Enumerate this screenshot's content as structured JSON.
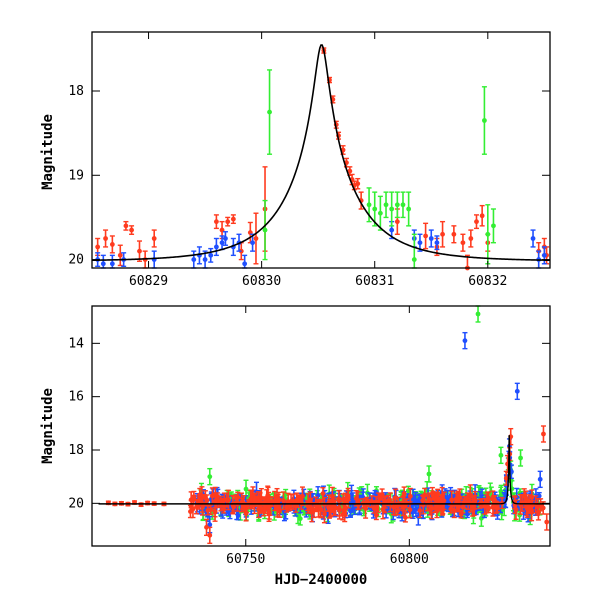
{
  "chart_data": [
    {
      "type": "scatter",
      "title": "",
      "xlabel": "",
      "ylabel": "Magnitude",
      "xlim": [
        60828.5,
        60832.55
      ],
      "ylim": [
        20.1,
        17.3
      ],
      "y_inverted": true,
      "x_ticks": [
        60829,
        60830,
        60831,
        60832
      ],
      "y_ticks": [
        18,
        19,
        20
      ],
      "grid": false,
      "legend": "none",
      "model_curve": {
        "description_free": true,
        "t0": 60830.53,
        "peak_mag": 17.45,
        "baseline_mag": 20.02,
        "t_e": 0.6,
        "u0": 0.09,
        "color": "#000000"
      },
      "series": [
        {
          "color": "#ff3b1f",
          "points": [
            [
              60828.55,
              19.85,
              0.1
            ],
            [
              60828.62,
              19.75,
              0.1
            ],
            [
              60828.68,
              19.82,
              0.1
            ],
            [
              60828.75,
              19.95,
              0.12
            ],
            [
              60828.8,
              19.6,
              0.05
            ],
            [
              60828.85,
              19.65,
              0.05
            ],
            [
              60828.92,
              19.9,
              0.12
            ],
            [
              60828.97,
              20.0,
              0.1
            ],
            [
              60829.05,
              19.75,
              0.1
            ],
            [
              60829.6,
              19.55,
              0.08
            ],
            [
              60829.65,
              19.65,
              0.1
            ],
            [
              60829.7,
              19.55,
              0.05
            ],
            [
              60829.75,
              19.52,
              0.05
            ],
            [
              60829.82,
              19.9,
              0.1
            ],
            [
              60829.9,
              19.68,
              0.12
            ],
            [
              60829.95,
              19.75,
              0.3
            ],
            [
              60830.03,
              19.4,
              0.5
            ],
            [
              60830.55,
              17.52,
              0.03
            ],
            [
              60830.6,
              17.87,
              0.03
            ],
            [
              60830.63,
              18.1,
              0.04
            ],
            [
              60830.66,
              18.4,
              0.04
            ],
            [
              60830.68,
              18.53,
              0.04
            ],
            [
              60830.72,
              18.7,
              0.05
            ],
            [
              60830.75,
              18.85,
              0.05
            ],
            [
              60830.78,
              18.95,
              0.05
            ],
            [
              60830.8,
              19.05,
              0.06
            ],
            [
              60830.82,
              19.12,
              0.05
            ],
            [
              60830.85,
              19.1,
              0.06
            ],
            [
              60830.88,
              19.3,
              0.1
            ],
            [
              60831.2,
              19.55,
              0.15
            ],
            [
              60831.45,
              19.72,
              0.15
            ],
            [
              60831.55,
              19.85,
              0.1
            ],
            [
              60831.6,
              19.7,
              0.15
            ],
            [
              60831.7,
              19.7,
              0.1
            ],
            [
              60831.78,
              19.8,
              0.1
            ],
            [
              60831.82,
              20.1,
              0.15
            ],
            [
              60831.85,
              19.75,
              0.1
            ],
            [
              60831.9,
              19.55,
              0.08
            ],
            [
              60831.95,
              19.48,
              0.12
            ],
            [
              60832.0,
              19.8,
              0.1
            ],
            [
              60832.45,
              19.9,
              0.1
            ],
            [
              60832.5,
              19.85,
              0.1
            ],
            [
              60832.52,
              19.95,
              0.1
            ]
          ]
        },
        {
          "color": "#1f4fff",
          "points": [
            [
              60828.55,
              20.0,
              0.08
            ],
            [
              60828.6,
              20.05,
              0.1
            ],
            [
              60828.68,
              20.05,
              0.1
            ],
            [
              60828.78,
              20.0,
              0.08
            ],
            [
              60829.05,
              20.0,
              0.1
            ],
            [
              60829.4,
              20.0,
              0.1
            ],
            [
              60829.45,
              19.95,
              0.1
            ],
            [
              60829.5,
              20.0,
              0.1
            ],
            [
              60829.55,
              19.95,
              0.08
            ],
            [
              60829.6,
              19.85,
              0.1
            ],
            [
              60829.65,
              19.8,
              0.08
            ],
            [
              60829.68,
              19.75,
              0.08
            ],
            [
              60829.75,
              19.85,
              0.1
            ],
            [
              60829.8,
              19.8,
              0.1
            ],
            [
              60829.85,
              20.05,
              0.1
            ],
            [
              60829.92,
              19.8,
              0.1
            ],
            [
              60831.15,
              19.65,
              0.1
            ],
            [
              60831.35,
              19.75,
              0.1
            ],
            [
              60831.4,
              19.8,
              0.1
            ],
            [
              60831.5,
              19.75,
              0.1
            ],
            [
              60831.55,
              19.8,
              0.08
            ],
            [
              60832.4,
              19.75,
              0.1
            ],
            [
              60832.45,
              20.0,
              0.1
            ],
            [
              60832.5,
              19.95,
              0.1
            ]
          ]
        },
        {
          "color": "#33ee33",
          "points": [
            [
              60830.03,
              19.65,
              0.35
            ],
            [
              60830.07,
              18.25,
              0.5
            ],
            [
              60830.95,
              19.35,
              0.2
            ],
            [
              60831.0,
              19.4,
              0.2
            ],
            [
              60831.05,
              19.45,
              0.2
            ],
            [
              60831.1,
              19.35,
              0.15
            ],
            [
              60831.15,
              19.4,
              0.2
            ],
            [
              60831.2,
              19.35,
              0.15
            ],
            [
              60831.25,
              19.35,
              0.15
            ],
            [
              60831.3,
              19.4,
              0.2
            ],
            [
              60831.35,
              20.0,
              0.3
            ],
            [
              60831.97,
              18.35,
              0.4
            ],
            [
              60832.0,
              19.7,
              0.35
            ],
            [
              60832.05,
              19.6,
              0.2
            ]
          ]
        }
      ]
    },
    {
      "type": "scatter",
      "title": "",
      "xlabel": "HJD−2400000",
      "ylabel": "Magnitude",
      "xlim": [
        60703,
        60843
      ],
      "ylim": [
        21.6,
        12.6
      ],
      "y_inverted": true,
      "x_ticks": [
        60750,
        60800
      ],
      "y_ticks": [
        14,
        16,
        18,
        20
      ],
      "grid": false,
      "legend": "none",
      "model_baseline": 20.02,
      "model_peak_time": 60830.53,
      "model_peak_mag": 17.45,
      "series": [
        {
          "color": "#ff3b1f",
          "sparse_early": [
            [
              60708,
              19.98
            ],
            [
              60710,
              20.02
            ],
            [
              60712,
              20.0
            ],
            [
              60714,
              20.03
            ],
            [
              60716,
              19.97
            ],
            [
              60718,
              20.05
            ],
            [
              60720,
              19.99
            ],
            [
              60722,
              20.01
            ],
            [
              60725,
              20.02
            ]
          ],
          "dense_range": [
            60733,
            60841
          ],
          "scatter_sigma": 0.35,
          "outliers": [
            [
              60738,
              20.9
            ],
            [
              60739,
              21.2
            ],
            [
              60841,
              17.4
            ],
            [
              60831,
              17.5
            ],
            [
              60842,
              20.7
            ]
          ]
        },
        {
          "color": "#1f4fff",
          "dense_range": [
            60735,
            60841
          ],
          "scatter_sigma": 0.4,
          "outliers": [
            [
              60817,
              13.9
            ],
            [
              60833,
              15.8
            ],
            [
              60739,
              20.8
            ],
            [
              60840,
              19.1
            ]
          ]
        },
        {
          "color": "#33ee33",
          "dense_range": [
            60736,
            60840
          ],
          "scatter_sigma": 0.45,
          "outliers": [
            [
              60821,
              12.9
            ],
            [
              60739,
              19.0
            ],
            [
              60806,
              18.9
            ],
            [
              60828,
              18.2
            ],
            [
              60834,
              18.3
            ]
          ]
        }
      ]
    }
  ]
}
